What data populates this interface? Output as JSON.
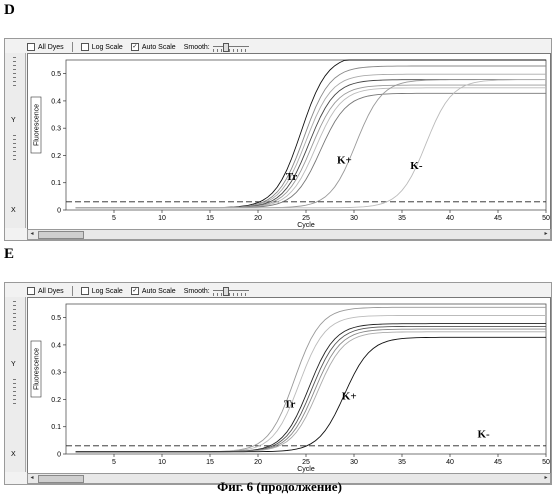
{
  "panels": [
    {
      "letter": "D",
      "toolbar": {
        "all_dyes": "All Dyes",
        "log_scale": "Log Scale",
        "auto_scale": "Auto Scale",
        "smooth": "Smooth:",
        "all_dyes_checked": false,
        "log_scale_checked": false,
        "auto_scale_checked": true
      },
      "left_labels": {
        "y": "Y",
        "x": "X"
      }
    },
    {
      "letter": "E",
      "toolbar": {
        "all_dyes": "All Dyes",
        "log_scale": "Log Scale",
        "auto_scale": "Auto Scale",
        "smooth": "Smooth:",
        "all_dyes_checked": false,
        "log_scale_checked": false,
        "auto_scale_checked": true
      },
      "left_labels": {
        "y": "Y",
        "x": "X"
      }
    }
  ],
  "chart_data": [
    {
      "type": "line",
      "panel": "D",
      "xlabel": "Cycle",
      "ylabel": "Fluorescence",
      "xlim": [
        0,
        50
      ],
      "ylim": [
        0,
        0.55
      ],
      "xticks": [
        5,
        10,
        15,
        20,
        25,
        30,
        35,
        40,
        45,
        50
      ],
      "yticks": [
        0,
        0.1,
        0.2,
        0.3,
        0.4,
        0.5
      ],
      "threshold": 0.03,
      "annotations": [
        {
          "text": "Tr",
          "x": 23.5,
          "y": 0.11
        },
        {
          "text": "K+",
          "x": 29,
          "y": 0.17
        },
        {
          "text": "K-",
          "x": 36.5,
          "y": 0.15
        }
      ],
      "series": [
        {
          "midpoint": 24.5,
          "plateau": 0.56,
          "color": "#111111"
        },
        {
          "midpoint": 24.8,
          "plateau": 0.52,
          "color": "#888888"
        },
        {
          "midpoint": 25.0,
          "plateau": 0.49,
          "color": "#aaaaaa"
        },
        {
          "midpoint": 25.3,
          "plateau": 0.47,
          "color": "#444444"
        },
        {
          "midpoint": 25.6,
          "plateau": 0.45,
          "color": "#999999"
        },
        {
          "midpoint": 26.0,
          "plateau": 0.44,
          "color": "#bbbbbb"
        },
        {
          "midpoint": 26.5,
          "plateau": 0.42,
          "color": "#777777"
        },
        {
          "midpoint": 30.2,
          "plateau": 0.47,
          "color": "#999999"
        },
        {
          "midpoint": 37.5,
          "plateau": 0.47,
          "color": "#bbbbbb"
        }
      ]
    },
    {
      "type": "line",
      "panel": "E",
      "xlabel": "Cycle",
      "ylabel": "Fluorescence",
      "xlim": [
        0,
        50
      ],
      "ylim": [
        0,
        0.55
      ],
      "xticks": [
        5,
        10,
        15,
        20,
        25,
        30,
        35,
        40,
        45,
        50
      ],
      "yticks": [
        0,
        0.1,
        0.2,
        0.3,
        0.4,
        0.5
      ],
      "threshold": 0.03,
      "annotations": [
        {
          "text": "Tr",
          "x": 23.3,
          "y": 0.17
        },
        {
          "text": "K+",
          "x": 29.5,
          "y": 0.2
        },
        {
          "text": "K-",
          "x": 43.5,
          "y": 0.06
        }
      ],
      "series": [
        {
          "midpoint": 23.8,
          "plateau": 0.53,
          "color": "#999999"
        },
        {
          "midpoint": 24.3,
          "plateau": 0.5,
          "color": "#bbbbbb"
        },
        {
          "midpoint": 25.3,
          "plateau": 0.47,
          "color": "#222222"
        },
        {
          "midpoint": 25.6,
          "plateau": 0.46,
          "color": "#555555"
        },
        {
          "midpoint": 25.9,
          "plateau": 0.45,
          "color": "#888888"
        },
        {
          "midpoint": 26.2,
          "plateau": 0.44,
          "color": "#aaaaaa"
        },
        {
          "midpoint": 29.0,
          "plateau": 0.42,
          "color": "#111111"
        }
      ]
    }
  ],
  "caption": "Фиг. 6 (продолжение)"
}
